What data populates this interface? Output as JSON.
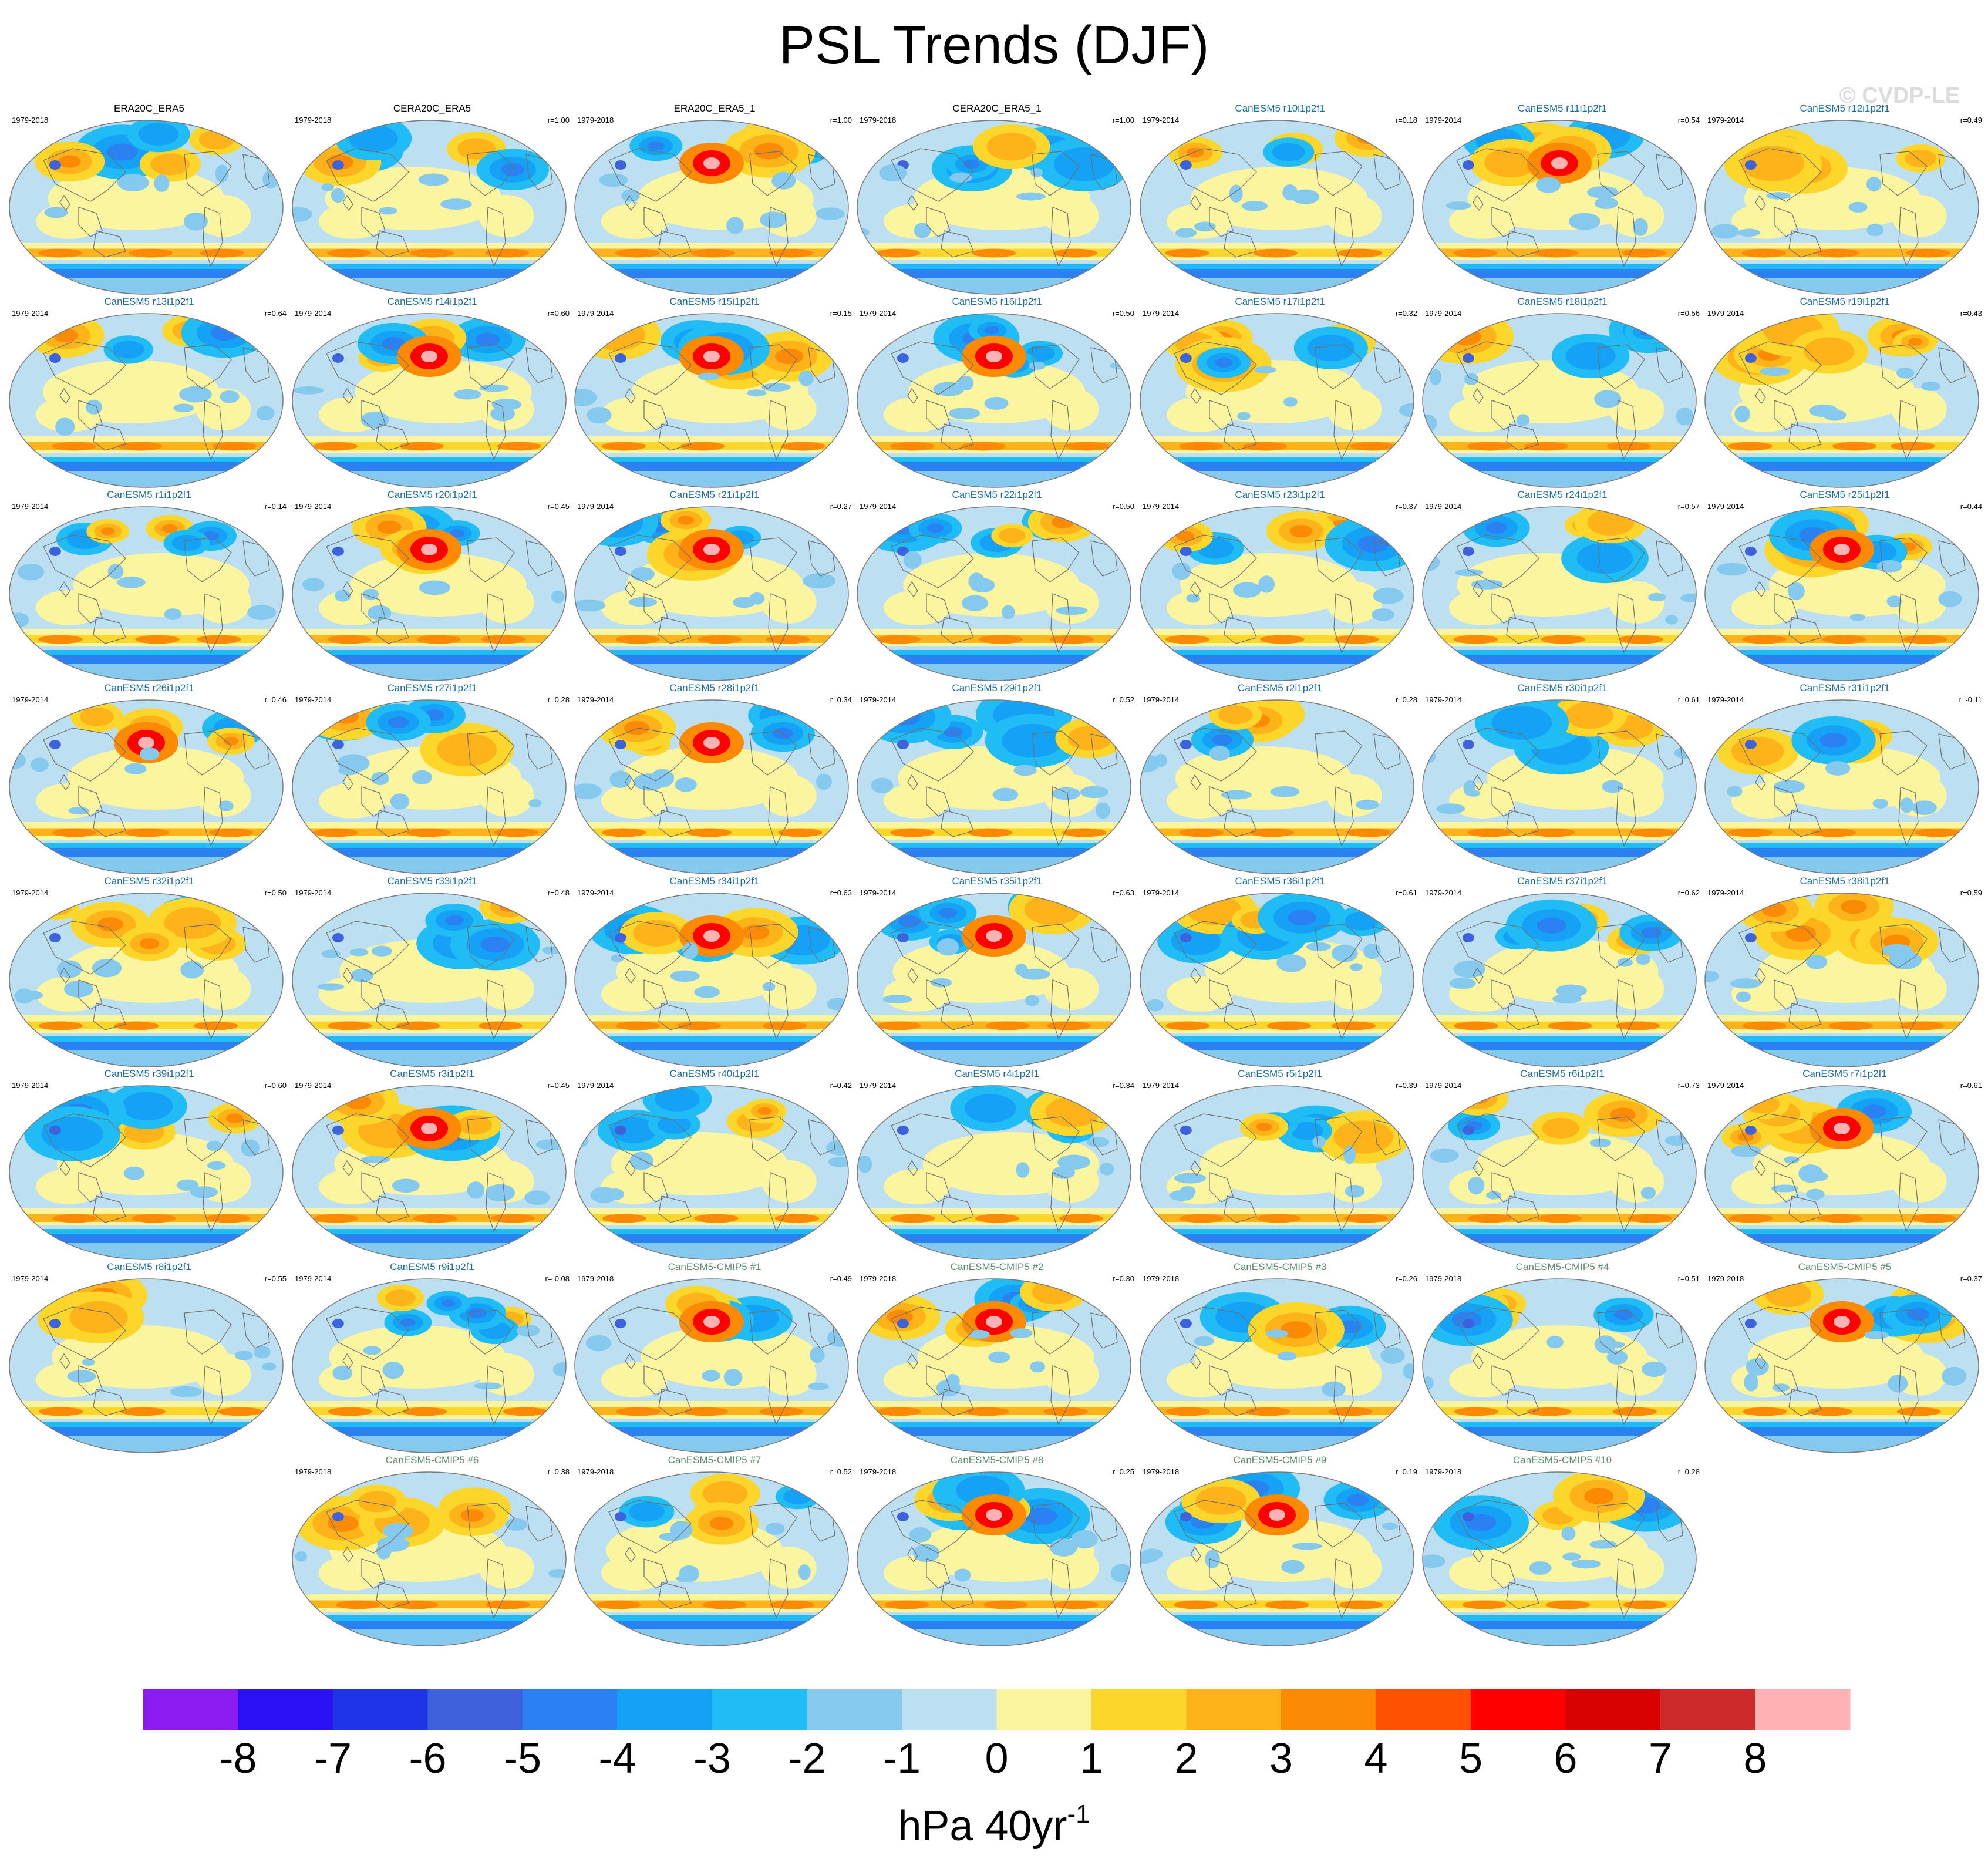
{
  "title": "PSL Trends (DJF)",
  "watermark": "© CVDP-LE",
  "chart_data": {
    "type": "heatmap",
    "title": "PSL Trends (DJF)",
    "projection": "global map panels",
    "colorbar": {
      "label_text": "hPa 40yr",
      "label_superscript": "-1",
      "tick_labels": [
        "-8",
        "-7",
        "-6",
        "-5",
        "-4",
        "-3",
        "-2",
        "-1",
        "0",
        "1",
        "2",
        "3",
        "4",
        "5",
        "6",
        "7",
        "8"
      ],
      "colors": [
        "#8a1cf0",
        "#2a10f5",
        "#1f34e4",
        "#3d62dc",
        "#2a82f2",
        "#15a2f6",
        "#1fbcf5",
        "#86c9ee",
        "#bcdff2",
        "#fbf5a0",
        "#fdd62c",
        "#fdb319",
        "#fd8a05",
        "#fe5000",
        "#fe0000",
        "#d80000",
        "#cc2a2a",
        "#fdb3b3"
      ]
    },
    "panels": [
      {
        "title": "ERA20C_ERA5",
        "period": "1979-2018",
        "r": "",
        "kind": "obs"
      },
      {
        "title": "CERA20C_ERA5",
        "period": "1979-2018",
        "r": "r=1.00",
        "kind": "obs"
      },
      {
        "title": "ERA20C_ERA5_1",
        "period": "1979-2018",
        "r": "r=1.00",
        "kind": "obs"
      },
      {
        "title": "CERA20C_ERA5_1",
        "period": "1979-2018",
        "r": "r=1.00",
        "kind": "obs"
      },
      {
        "title": "CanESM5 r10i1p2f1",
        "period": "1979-2014",
        "r": "r=0.18",
        "kind": "le"
      },
      {
        "title": "CanESM5 r11i1p2f1",
        "period": "1979-2014",
        "r": "r=0.54",
        "kind": "le"
      },
      {
        "title": "CanESM5 r12i1p2f1",
        "period": "1979-2014",
        "r": "r=0.49",
        "kind": "le"
      },
      {
        "title": "CanESM5 r13i1p2f1",
        "period": "1979-2014",
        "r": "r=0.64",
        "kind": "le"
      },
      {
        "title": "CanESM5 r14i1p2f1",
        "period": "1979-2014",
        "r": "r=0.60",
        "kind": "le"
      },
      {
        "title": "CanESM5 r15i1p2f1",
        "period": "1979-2014",
        "r": "r=0.15",
        "kind": "le"
      },
      {
        "title": "CanESM5 r16i1p2f1",
        "period": "1979-2014",
        "r": "r=0.50",
        "kind": "le"
      },
      {
        "title": "CanESM5 r17i1p2f1",
        "period": "1979-2014",
        "r": "r=0.32",
        "kind": "le"
      },
      {
        "title": "CanESM5 r18i1p2f1",
        "period": "1979-2014",
        "r": "r=0.56",
        "kind": "le"
      },
      {
        "title": "CanESM5 r19i1p2f1",
        "period": "1979-2014",
        "r": "r=0.43",
        "kind": "le"
      },
      {
        "title": "CanESM5 r1i1p2f1",
        "period": "1979-2014",
        "r": "r=0.14",
        "kind": "le"
      },
      {
        "title": "CanESM5 r20i1p2f1",
        "period": "1979-2014",
        "r": "r=0.45",
        "kind": "le"
      },
      {
        "title": "CanESM5 r21i1p2f1",
        "period": "1979-2014",
        "r": "r=0.27",
        "kind": "le"
      },
      {
        "title": "CanESM5 r22i1p2f1",
        "period": "1979-2014",
        "r": "r=0.50",
        "kind": "le"
      },
      {
        "title": "CanESM5 r23i1p2f1",
        "period": "1979-2014",
        "r": "r=0.37",
        "kind": "le"
      },
      {
        "title": "CanESM5 r24i1p2f1",
        "period": "1979-2014",
        "r": "r=0.57",
        "kind": "le"
      },
      {
        "title": "CanESM5 r25i1p2f1",
        "period": "1979-2014",
        "r": "r=0.44",
        "kind": "le"
      },
      {
        "title": "CanESM5 r26i1p2f1",
        "period": "1979-2014",
        "r": "r=0.46",
        "kind": "le"
      },
      {
        "title": "CanESM5 r27i1p2f1",
        "period": "1979-2014",
        "r": "r=0.28",
        "kind": "le"
      },
      {
        "title": "CanESM5 r28i1p2f1",
        "period": "1979-2014",
        "r": "r=0.34",
        "kind": "le"
      },
      {
        "title": "CanESM5 r29i1p2f1",
        "period": "1979-2014",
        "r": "r=0.52",
        "kind": "le"
      },
      {
        "title": "CanESM5 r2i1p2f1",
        "period": "1979-2014",
        "r": "r=0.28",
        "kind": "le"
      },
      {
        "title": "CanESM5 r30i1p2f1",
        "period": "1979-2014",
        "r": "r=0.61",
        "kind": "le"
      },
      {
        "title": "CanESM5 r31i1p2f1",
        "period": "1979-2014",
        "r": "r=-0.11",
        "kind": "le"
      },
      {
        "title": "CanESM5 r32i1p2f1",
        "period": "1979-2014",
        "r": "r=0.50",
        "kind": "le"
      },
      {
        "title": "CanESM5 r33i1p2f1",
        "period": "1979-2014",
        "r": "r=0.48",
        "kind": "le"
      },
      {
        "title": "CanESM5 r34i1p2f1",
        "period": "1979-2014",
        "r": "r=0.63",
        "kind": "le"
      },
      {
        "title": "CanESM5 r35i1p2f1",
        "period": "1979-2014",
        "r": "r=0.63",
        "kind": "le"
      },
      {
        "title": "CanESM5 r36i1p2f1",
        "period": "1979-2014",
        "r": "r=0.61",
        "kind": "le"
      },
      {
        "title": "CanESM5 r37i1p2f1",
        "period": "1979-2014",
        "r": "r=0.62",
        "kind": "le"
      },
      {
        "title": "CanESM5 r38i1p2f1",
        "period": "1979-2014",
        "r": "r=0.59",
        "kind": "le"
      },
      {
        "title": "CanESM5 r39i1p2f1",
        "period": "1979-2014",
        "r": "r=0.60",
        "kind": "le"
      },
      {
        "title": "CanESM5 r3i1p2f1",
        "period": "1979-2014",
        "r": "r=0.45",
        "kind": "le"
      },
      {
        "title": "CanESM5 r40i1p2f1",
        "period": "1979-2014",
        "r": "r=0.42",
        "kind": "le"
      },
      {
        "title": "CanESM5 r4i1p2f1",
        "period": "1979-2014",
        "r": "r=0.34",
        "kind": "le"
      },
      {
        "title": "CanESM5 r5i1p2f1",
        "period": "1979-2014",
        "r": "r=0.39",
        "kind": "le"
      },
      {
        "title": "CanESM5 r6i1p2f1",
        "period": "1979-2014",
        "r": "r=0.73",
        "kind": "le"
      },
      {
        "title": "CanESM5 r7i1p2f1",
        "period": "1979-2014",
        "r": "r=0.61",
        "kind": "le"
      },
      {
        "title": "CanESM5 r8i1p2f1",
        "period": "1979-2014",
        "r": "r=0.55",
        "kind": "le"
      },
      {
        "title": "CanESM5 r9i1p2f1",
        "period": "1979-2014",
        "r": "r=-0.08",
        "kind": "le"
      },
      {
        "title": "CanESM5-CMIP5 #1",
        "period": "1979-2018",
        "r": "r=0.49",
        "kind": "cmip"
      },
      {
        "title": "CanESM5-CMIP5 #2",
        "period": "1979-2018",
        "r": "r=0.30",
        "kind": "cmip"
      },
      {
        "title": "CanESM5-CMIP5 #3",
        "period": "1979-2018",
        "r": "r=0.26",
        "kind": "cmip"
      },
      {
        "title": "CanESM5-CMIP5 #4",
        "period": "1979-2018",
        "r": "r=0.51",
        "kind": "cmip"
      },
      {
        "title": "CanESM5-CMIP5 #5",
        "period": "1979-2018",
        "r": "r=0.37",
        "kind": "cmip"
      },
      {
        "title": "CanESM5-CMIP5 #6",
        "period": "1979-2018",
        "r": "r=0.38",
        "kind": "cmip"
      },
      {
        "title": "CanESM5-CMIP5 #7",
        "period": "1979-2018",
        "r": "r=0.52",
        "kind": "cmip"
      },
      {
        "title": "CanESM5-CMIP5 #8",
        "period": "1979-2018",
        "r": "r=0.25",
        "kind": "cmip"
      },
      {
        "title": "CanESM5-CMIP5 #9",
        "period": "1979-2018",
        "r": "r=0.19",
        "kind": "cmip"
      },
      {
        "title": "CanESM5-CMIP5 #10",
        "period": "1979-2018",
        "r": "r=0.28",
        "kind": "cmip"
      }
    ]
  }
}
